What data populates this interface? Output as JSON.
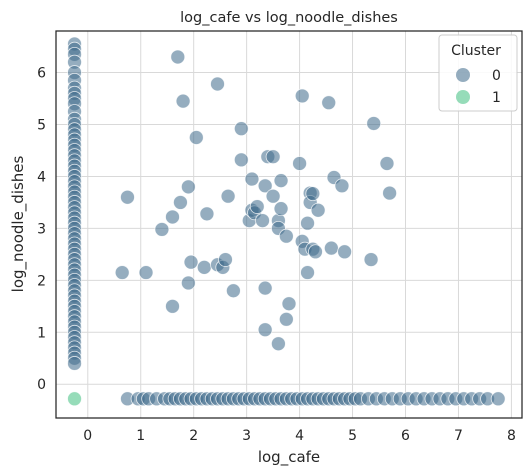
{
  "chart_data": {
    "type": "scatter",
    "title": "log_cafe vs log_noodle_dishes",
    "xlabel": "log_cafe",
    "ylabel": "log_noodle_dishes",
    "xlim": [
      -0.6,
      8.2
    ],
    "ylim": [
      -0.65,
      6.8
    ],
    "xticks": [
      0,
      1,
      2,
      3,
      4,
      5,
      6,
      7,
      8
    ],
    "yticks": [
      0,
      1,
      2,
      3,
      4,
      5,
      6
    ],
    "grid": true,
    "legend": {
      "title": "Cluster",
      "placement": "top-right"
    },
    "colors": {
      "cluster_0": "#3e6a8a",
      "cluster_1": "#3fbf7f"
    },
    "series": [
      {
        "name": "0",
        "points": [
          [
            -0.25,
            6.55
          ],
          [
            -0.25,
            6.45
          ],
          [
            -0.25,
            6.35
          ],
          [
            -0.25,
            6.2
          ],
          [
            -0.25,
            6.0
          ],
          [
            -0.25,
            5.85
          ],
          [
            -0.25,
            5.7
          ],
          [
            -0.25,
            5.6
          ],
          [
            -0.25,
            5.5
          ],
          [
            -0.25,
            5.4
          ],
          [
            -0.25,
            5.25
          ],
          [
            -0.25,
            5.1
          ],
          [
            -0.25,
            5.0
          ],
          [
            -0.25,
            4.9
          ],
          [
            -0.25,
            4.8
          ],
          [
            -0.25,
            4.7
          ],
          [
            -0.25,
            4.6
          ],
          [
            -0.25,
            4.5
          ],
          [
            -0.25,
            4.4
          ],
          [
            -0.25,
            4.3
          ],
          [
            -0.25,
            4.2
          ],
          [
            -0.25,
            4.1
          ],
          [
            -0.25,
            4.0
          ],
          [
            -0.25,
            3.9
          ],
          [
            -0.25,
            3.8
          ],
          [
            -0.25,
            3.7
          ],
          [
            -0.25,
            3.6
          ],
          [
            -0.25,
            3.5
          ],
          [
            -0.25,
            3.4
          ],
          [
            -0.25,
            3.3
          ],
          [
            -0.25,
            3.2
          ],
          [
            -0.25,
            3.1
          ],
          [
            -0.25,
            3.0
          ],
          [
            -0.25,
            2.9
          ],
          [
            -0.25,
            2.8
          ],
          [
            -0.25,
            2.7
          ],
          [
            -0.25,
            2.6
          ],
          [
            -0.25,
            2.5
          ],
          [
            -0.25,
            2.4
          ],
          [
            -0.25,
            2.3
          ],
          [
            -0.25,
            2.2
          ],
          [
            -0.25,
            2.1
          ],
          [
            -0.25,
            2.0
          ],
          [
            -0.25,
            1.9
          ],
          [
            -0.25,
            1.8
          ],
          [
            -0.25,
            1.7
          ],
          [
            -0.25,
            1.6
          ],
          [
            -0.25,
            1.5
          ],
          [
            -0.25,
            1.4
          ],
          [
            -0.25,
            1.3
          ],
          [
            -0.25,
            1.2
          ],
          [
            -0.25,
            1.1
          ],
          [
            -0.25,
            1.0
          ],
          [
            -0.25,
            0.9
          ],
          [
            -0.25,
            0.8
          ],
          [
            -0.25,
            0.7
          ],
          [
            -0.25,
            0.6
          ],
          [
            -0.25,
            0.5
          ],
          [
            -0.25,
            0.4
          ],
          [
            0.65,
            2.15
          ],
          [
            0.75,
            3.6
          ],
          [
            1.1,
            2.15
          ],
          [
            1.4,
            2.98
          ],
          [
            1.6,
            3.22
          ],
          [
            1.6,
            1.5
          ],
          [
            1.7,
            6.3
          ],
          [
            1.75,
            3.5
          ],
          [
            1.8,
            5.45
          ],
          [
            1.9,
            3.8
          ],
          [
            1.9,
            1.95
          ],
          [
            1.95,
            2.35
          ],
          [
            2.05,
            4.75
          ],
          [
            2.2,
            2.25
          ],
          [
            2.25,
            3.28
          ],
          [
            2.45,
            5.78
          ],
          [
            2.45,
            2.3
          ],
          [
            2.55,
            2.25
          ],
          [
            2.6,
            2.4
          ],
          [
            2.65,
            3.62
          ],
          [
            2.75,
            1.8
          ],
          [
            2.9,
            4.32
          ],
          [
            2.9,
            4.92
          ],
          [
            3.05,
            3.15
          ],
          [
            3.1,
            3.95
          ],
          [
            3.1,
            3.35
          ],
          [
            3.15,
            3.3
          ],
          [
            3.2,
            3.42
          ],
          [
            3.3,
            3.15
          ],
          [
            3.35,
            3.82
          ],
          [
            3.35,
            1.85
          ],
          [
            3.35,
            1.05
          ],
          [
            3.4,
            4.38
          ],
          [
            3.5,
            4.38
          ],
          [
            3.5,
            3.62
          ],
          [
            3.6,
            0.78
          ],
          [
            3.6,
            3.15
          ],
          [
            3.6,
            3.0
          ],
          [
            3.65,
            3.92
          ],
          [
            3.65,
            3.38
          ],
          [
            3.75,
            2.85
          ],
          [
            3.75,
            1.25
          ],
          [
            3.8,
            1.55
          ],
          [
            4.0,
            4.25
          ],
          [
            4.05,
            5.55
          ],
          [
            4.05,
            2.75
          ],
          [
            4.1,
            2.6
          ],
          [
            4.15,
            3.1
          ],
          [
            4.15,
            2.15
          ],
          [
            4.2,
            3.68
          ],
          [
            4.2,
            3.5
          ],
          [
            4.25,
            2.6
          ],
          [
            4.25,
            3.67
          ],
          [
            4.3,
            2.55
          ],
          [
            4.35,
            3.35
          ],
          [
            4.55,
            5.42
          ],
          [
            4.6,
            2.62
          ],
          [
            4.65,
            3.98
          ],
          [
            4.8,
            3.82
          ],
          [
            4.85,
            2.55
          ],
          [
            5.35,
            2.4
          ],
          [
            5.4,
            5.02
          ],
          [
            5.65,
            4.25
          ],
          [
            5.7,
            3.68
          ],
          [
            0.75,
            -0.28
          ],
          [
            0.95,
            -0.28
          ],
          [
            1.05,
            -0.28
          ],
          [
            1.15,
            -0.28
          ],
          [
            1.3,
            -0.28
          ],
          [
            1.45,
            -0.28
          ],
          [
            1.55,
            -0.28
          ],
          [
            1.65,
            -0.28
          ],
          [
            1.75,
            -0.28
          ],
          [
            1.85,
            -0.28
          ],
          [
            1.95,
            -0.28
          ],
          [
            2.05,
            -0.28
          ],
          [
            2.15,
            -0.28
          ],
          [
            2.25,
            -0.28
          ],
          [
            2.35,
            -0.28
          ],
          [
            2.45,
            -0.28
          ],
          [
            2.55,
            -0.28
          ],
          [
            2.65,
            -0.28
          ],
          [
            2.75,
            -0.28
          ],
          [
            2.85,
            -0.28
          ],
          [
            2.95,
            -0.28
          ],
          [
            3.05,
            -0.28
          ],
          [
            3.15,
            -0.28
          ],
          [
            3.25,
            -0.28
          ],
          [
            3.35,
            -0.28
          ],
          [
            3.45,
            -0.28
          ],
          [
            3.55,
            -0.28
          ],
          [
            3.65,
            -0.28
          ],
          [
            3.75,
            -0.28
          ],
          [
            3.85,
            -0.28
          ],
          [
            3.95,
            -0.28
          ],
          [
            4.05,
            -0.28
          ],
          [
            4.15,
            -0.28
          ],
          [
            4.25,
            -0.28
          ],
          [
            4.35,
            -0.28
          ],
          [
            4.45,
            -0.28
          ],
          [
            4.55,
            -0.28
          ],
          [
            4.65,
            -0.28
          ],
          [
            4.75,
            -0.28
          ],
          [
            4.85,
            -0.28
          ],
          [
            4.95,
            -0.28
          ],
          [
            5.05,
            -0.28
          ],
          [
            5.15,
            -0.28
          ],
          [
            5.3,
            -0.28
          ],
          [
            5.45,
            -0.28
          ],
          [
            5.6,
            -0.28
          ],
          [
            5.75,
            -0.28
          ],
          [
            5.9,
            -0.28
          ],
          [
            6.05,
            -0.28
          ],
          [
            6.2,
            -0.28
          ],
          [
            6.35,
            -0.28
          ],
          [
            6.5,
            -0.28
          ],
          [
            6.65,
            -0.28
          ],
          [
            6.8,
            -0.28
          ],
          [
            6.95,
            -0.28
          ],
          [
            7.1,
            -0.28
          ],
          [
            7.25,
            -0.28
          ],
          [
            7.4,
            -0.28
          ],
          [
            7.55,
            -0.28
          ],
          [
            7.75,
            -0.28
          ]
        ]
      },
      {
        "name": "1",
        "points": [
          [
            -0.25,
            -0.28
          ]
        ]
      }
    ]
  }
}
